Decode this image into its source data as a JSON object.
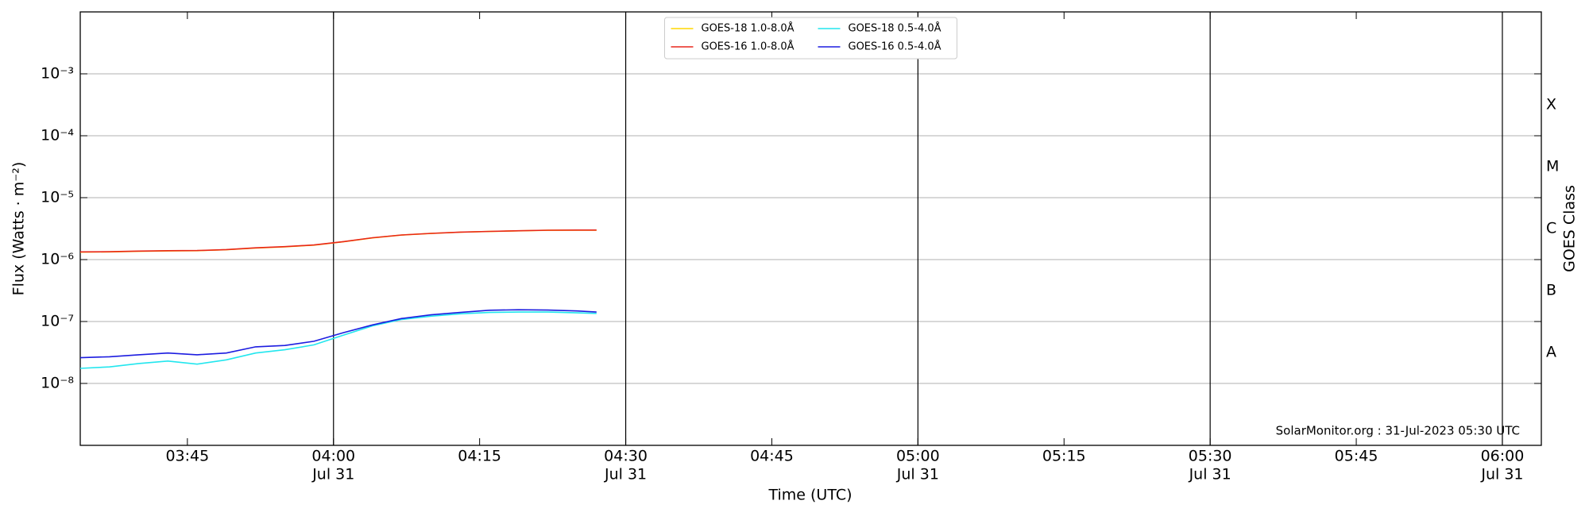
{
  "chart_data": {
    "type": "line",
    "ylabel": "Flux (Watts · m⁻²)",
    "xlabel": "Time (UTC)",
    "y2label": "GOES Class",
    "annotation": "SolarMonitor.org : 31-Jul-2023 05:30 UTC",
    "log_y": true,
    "grid": true,
    "legend": "upper center",
    "xlim": [
      "03:34",
      "06:04"
    ],
    "xticks": [
      "03:45",
      {
        "value": "04:00",
        "label": "04:00",
        "sublabel": "Jul 31"
      },
      "04:15",
      {
        "value": "04:30",
        "label": "04:30",
        "sublabel": "Jul 31"
      },
      "04:45",
      {
        "value": "05:00",
        "label": "05:00",
        "sublabel": "Jul 31"
      },
      "05:15",
      {
        "value": "05:30",
        "label": "05:30",
        "sublabel": "Jul 31"
      },
      "05:45",
      {
        "value": "06:00",
        "label": "06:00",
        "sublabel": "Jul 31"
      }
    ],
    "ylim": [
      1e-09,
      0.01
    ],
    "yticks": [
      {
        "value": 1e-08,
        "label": "10⁻⁸"
      },
      {
        "value": 1e-07,
        "label": "10⁻⁷"
      },
      {
        "value": 1e-06,
        "label": "10⁻⁶"
      },
      {
        "value": 1e-05,
        "label": "10⁻⁵"
      },
      {
        "value": 0.0001,
        "label": "10⁻⁴"
      },
      {
        "value": 0.001,
        "label": "10⁻³"
      }
    ],
    "class_labels": [
      {
        "value": 1e-08,
        "label": "A"
      },
      {
        "value": 1e-07,
        "label": "B"
      },
      {
        "value": 1e-06,
        "label": "C"
      },
      {
        "value": 1e-05,
        "label": "M"
      },
      {
        "value": 0.0001,
        "label": "X"
      }
    ],
    "x": [
      "03:34",
      "03:37",
      "03:40",
      "03:43",
      "03:46",
      "03:49",
      "03:52",
      "03:55",
      "03:58",
      "04:01",
      "04:04",
      "04:07",
      "04:10",
      "04:13",
      "04:16",
      "04:19",
      "04:22",
      "04:25",
      "04:27"
    ],
    "series": [
      {
        "name": "GOES-18 1.0-8.0Å",
        "color": "#ffd700",
        "values": [
          1.32e-06,
          1.33e-06,
          1.36e-06,
          1.38e-06,
          1.39e-06,
          1.44e-06,
          1.54e-06,
          1.61e-06,
          1.71e-06,
          1.94e-06,
          2.24e-06,
          2.49e-06,
          2.64e-06,
          2.77e-06,
          2.84e-06,
          2.91e-06,
          2.97e-06,
          2.99e-06,
          2.99e-06
        ]
      },
      {
        "name": "GOES-16 1.0-8.0Å",
        "color": "#e8261b",
        "values": [
          1.33e-06,
          1.34e-06,
          1.37e-06,
          1.39e-06,
          1.4e-06,
          1.45e-06,
          1.55e-06,
          1.62e-06,
          1.72e-06,
          1.95e-06,
          2.25e-06,
          2.5e-06,
          2.65e-06,
          2.78e-06,
          2.85e-06,
          2.92e-06,
          2.98e-06,
          3e-06,
          3e-06
        ]
      },
      {
        "name": "GOES-18 0.5-4.0Å",
        "color": "#22e6ee",
        "values": [
          1.75e-08,
          1.85e-08,
          2.1e-08,
          2.3e-08,
          2.05e-08,
          2.4e-08,
          3.1e-08,
          3.5e-08,
          4.2e-08,
          6e-08,
          8.5e-08,
          1.08e-07,
          1.22e-07,
          1.33e-07,
          1.4e-07,
          1.42e-07,
          1.42e-07,
          1.38e-07,
          1.35e-07
        ]
      },
      {
        "name": "GOES-16 0.5-4.0Å",
        "color": "#1c1ce0",
        "values": [
          2.6e-08,
          2.7e-08,
          2.9e-08,
          3.1e-08,
          2.9e-08,
          3.1e-08,
          3.9e-08,
          4.1e-08,
          4.8e-08,
          6.6e-08,
          8.8e-08,
          1.12e-07,
          1.28e-07,
          1.4e-07,
          1.52e-07,
          1.55e-07,
          1.53e-07,
          1.48e-07,
          1.42e-07
        ]
      }
    ]
  }
}
